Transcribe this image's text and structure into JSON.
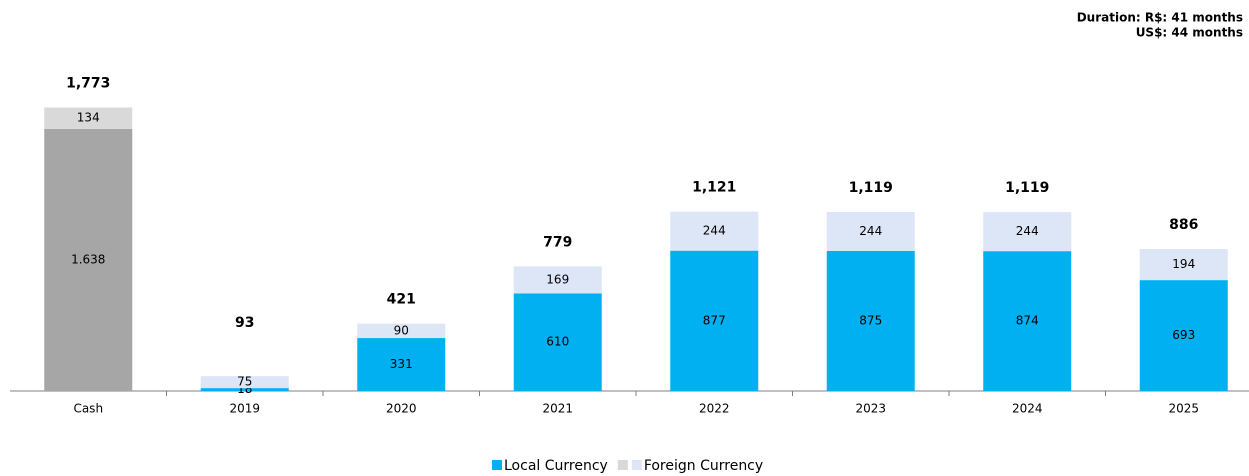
{
  "chart_data": {
    "type": "stacked_bar",
    "annotations": [
      "Duration: R$:   41 months",
      "US$: 44 months"
    ],
    "categories": [
      "Cash",
      "2019",
      "2020",
      "2021",
      "2022",
      "2023",
      "2024",
      "2025"
    ],
    "series": [
      {
        "name": "Local Currency",
        "color": "#00b0f0",
        "colors": [
          "#a6a6a6",
          "#00b0f0",
          "#00b0f0",
          "#00b0f0",
          "#00b0f0",
          "#00b0f0",
          "#00b0f0",
          "#00b0f0"
        ],
        "values": [
          1638,
          18,
          331,
          610,
          877,
          875,
          874,
          693
        ],
        "value_labels": [
          "1.638",
          "18",
          "331",
          "610",
          "877",
          "875",
          "874",
          "693"
        ]
      },
      {
        "name": "Foreign Currency",
        "color": "#dce6f7",
        "colors": [
          "#d9d9d9",
          "#dce6f7",
          "#dce6f7",
          "#dce6f7",
          "#dce6f7",
          "#dce6f7",
          "#dce6f7",
          "#dce6f7"
        ],
        "values": [
          134,
          75,
          90,
          169,
          244,
          244,
          244,
          194
        ]
      }
    ],
    "totals": [
      1773,
      93,
      421,
      779,
      1121,
      1119,
      1119,
      886
    ],
    "total_labels": [
      "1,773",
      "93",
      "421",
      "779",
      "1,121",
      "1,119",
      "1,119",
      "886"
    ],
    "ylim": [
      0,
      1800
    ]
  }
}
